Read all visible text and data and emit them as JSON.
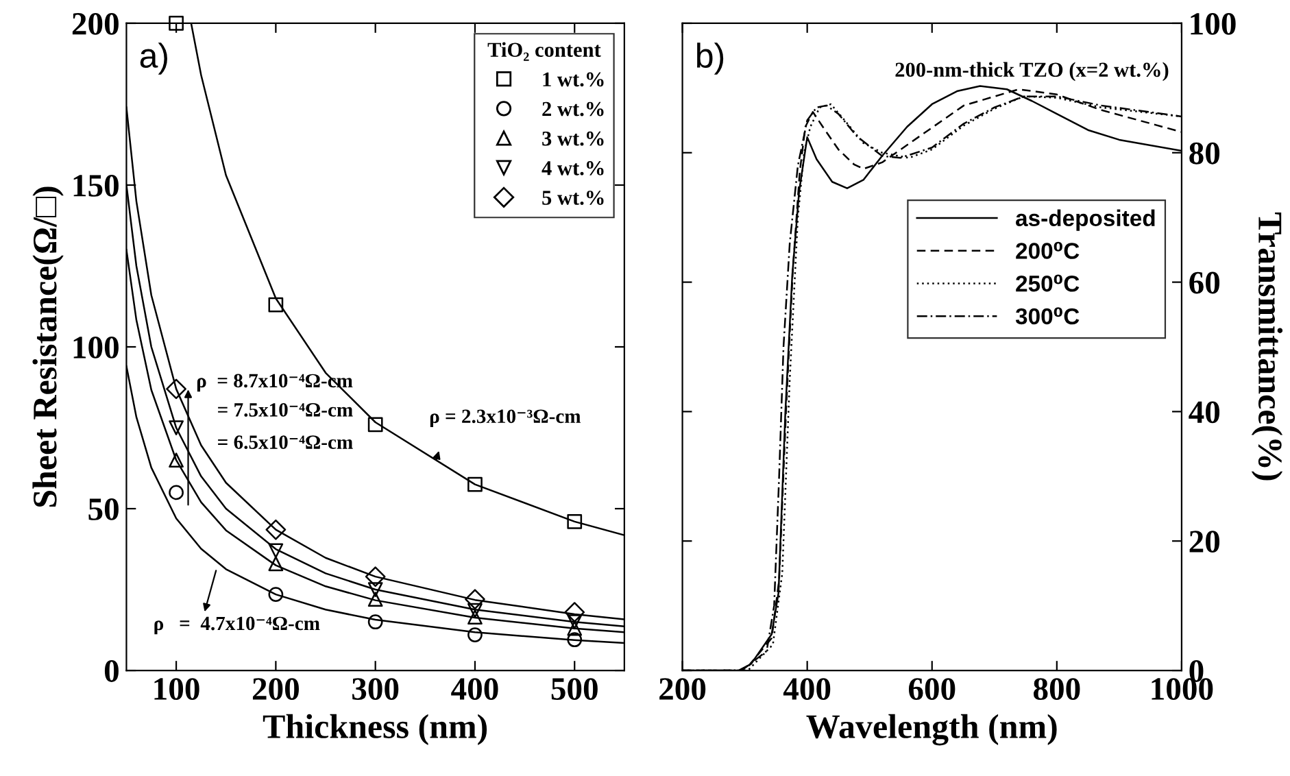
{
  "chart_data": [
    {
      "type": "scatter",
      "xlabel": "Thickness (nm)",
      "ylabel": "Sheet Resistance(Ω/□)",
      "legend_title": "TiO₂ content",
      "legend": "top right",
      "grid": false,
      "xlim": [
        50,
        550
      ],
      "xticks": [
        100,
        200,
        300,
        400,
        500
      ],
      "ylim": [
        0,
        200
      ],
      "yticks": [
        0,
        50,
        100,
        150,
        200
      ],
      "x": [
        100,
        200,
        300,
        400,
        500
      ],
      "series": [
        {
          "name": "1 wt.%",
          "color": "#000000",
          "marker": "square",
          "values": [
            200,
            113,
            76,
            57.5,
            46
          ]
        },
        {
          "name": "2 wt.%",
          "color": "#000000",
          "marker": "circle",
          "values": [
            55,
            23.5,
            15,
            11,
            9.5
          ]
        },
        {
          "name": "3 wt.%",
          "color": "#000000",
          "marker": "triangle",
          "values": [
            65,
            33,
            22,
            16.5,
            13
          ]
        },
        {
          "name": "4 wt.%",
          "color": "#000000",
          "marker": "triangle_down",
          "values": [
            75,
            37,
            25,
            18.5,
            15
          ]
        },
        {
          "name": "5 wt.%",
          "color": "#000000",
          "marker": "diamond",
          "values": [
            87,
            43.5,
            29,
            22,
            18
          ]
        },
        {
          "type": "line",
          "color": "#000000",
          "x": [
            115,
            125,
            150,
            200,
            250,
            300,
            400,
            500,
            550
          ],
          "values": [
            200,
            184,
            153,
            115,
            92,
            76.7,
            57.5,
            46,
            41.8
          ]
        },
        {
          "type": "line",
          "color": "#000000",
          "x": [
            50,
            60,
            75,
            100,
            125,
            150,
            200,
            250,
            300,
            400,
            500,
            550
          ],
          "values": [
            174,
            145,
            116,
            87,
            69.6,
            58,
            43.5,
            34.8,
            29,
            21.8,
            17.4,
            15.8
          ]
        },
        {
          "type": "line",
          "color": "#000000",
          "x": [
            50,
            60,
            75,
            100,
            125,
            150,
            200,
            250,
            300,
            400,
            500,
            550
          ],
          "values": [
            150,
            125,
            100,
            75,
            60,
            50,
            37.5,
            30,
            25,
            18.8,
            15,
            13.6
          ]
        },
        {
          "type": "line",
          "color": "#000000",
          "x": [
            50,
            60,
            75,
            100,
            125,
            150,
            200,
            250,
            300,
            400,
            500,
            550
          ],
          "values": [
            130,
            108.3,
            86.7,
            65,
            52,
            43.3,
            32.5,
            26,
            21.7,
            16.3,
            13,
            11.8
          ]
        },
        {
          "type": "line",
          "color": "#000000",
          "x": [
            50,
            60,
            75,
            100,
            125,
            150,
            200,
            250,
            300,
            400,
            500,
            550
          ],
          "values": [
            94,
            78.3,
            62.7,
            47,
            37.6,
            31.3,
            23.5,
            18.8,
            15.7,
            11.8,
            9.4,
            8.5
          ]
        }
      ],
      "annotations": [
        "a)",
        "ρ  = 8.7x10⁻⁴Ω-cm",
        "= 7.5x10⁻⁴Ω-cm",
        "= 6.5x10⁻⁴Ω-cm",
        "ρ = 2.3x10⁻³Ω-cm",
        "ρ   =  4.7x10⁻⁴Ω-cm"
      ]
    },
    {
      "type": "line",
      "xlabel": "Wavelength (nm)",
      "y2label": "Transmittance(%)",
      "legend": "right",
      "grid": false,
      "xlim": [
        200,
        1000
      ],
      "xticks": [
        200,
        400,
        600,
        800,
        1000
      ],
      "y2lim": [
        0,
        100
      ],
      "y2ticks": [
        0,
        20,
        40,
        60,
        80,
        100
      ],
      "series": [
        {
          "name": "as-deposited",
          "color": "#000000",
          "axis": "y2",
          "line_style": "solid",
          "x": [
            200,
            290,
            310,
            343,
            354,
            365,
            376,
            387,
            400,
            415,
            440,
            464,
            490,
            520,
            560,
            600,
            640,
            677,
            720,
            760,
            800,
            850,
            900,
            1000
          ],
          "values": [
            0,
            0,
            1,
            5.6,
            12,
            40,
            61,
            74,
            82.4,
            79,
            75.5,
            74.5,
            75.8,
            79.5,
            84,
            87.5,
            89.5,
            90.3,
            89.8,
            88,
            86,
            83.5,
            82,
            80.3
          ]
        },
        {
          "name": "200⁰C",
          "color": "#000000",
          "axis": "y2",
          "line_style": "dashed",
          "x": [
            200,
            300,
            343,
            355,
            366,
            377,
            388,
            397,
            409,
            425,
            450,
            475,
            490,
            520,
            578,
            651,
            739,
            800,
            871,
            1000
          ],
          "values": [
            0,
            0,
            5,
            14,
            40,
            62,
            77,
            84,
            86.3,
            84,
            80.5,
            78.2,
            77.5,
            78.5,
            82.4,
            87.3,
            89.8,
            89,
            86.6,
            83.2
          ]
        },
        {
          "name": "250⁰C",
          "color": "#000000",
          "axis": "y2",
          "line_style": "dotted",
          "x": [
            200,
            305,
            345,
            360,
            372,
            385,
            395,
            405,
            420,
            438,
            460,
            490,
            520,
            563,
            600,
            651,
            700,
            747,
            800,
            871,
            1000
          ],
          "values": [
            0,
            0,
            4,
            15,
            45,
            70,
            80,
            84,
            87,
            87.5,
            85,
            81.5,
            80,
            79.2,
            80.5,
            84.2,
            86.8,
            88.7,
            88.5,
            87,
            85.6
          ]
        },
        {
          "name": "300⁰C",
          "color": "#000000",
          "axis": "y2",
          "line_style": "dashdot",
          "x": [
            200,
            295,
            335,
            347,
            355,
            362,
            372,
            385,
            400,
            415,
            431,
            450,
            480,
            520,
            549,
            600,
            651,
            700,
            747,
            800,
            871,
            1000
          ],
          "values": [
            0,
            0,
            3,
            10,
            30,
            50,
            66,
            78,
            85,
            87,
            87.3,
            86,
            82.5,
            79.5,
            79.2,
            80.8,
            84.5,
            87,
            88.7,
            88.7,
            87.3,
            85.6
          ]
        }
      ],
      "annotations": [
        "b)",
        "200-nm-thick TZO (x=2 wt.%)"
      ]
    }
  ]
}
